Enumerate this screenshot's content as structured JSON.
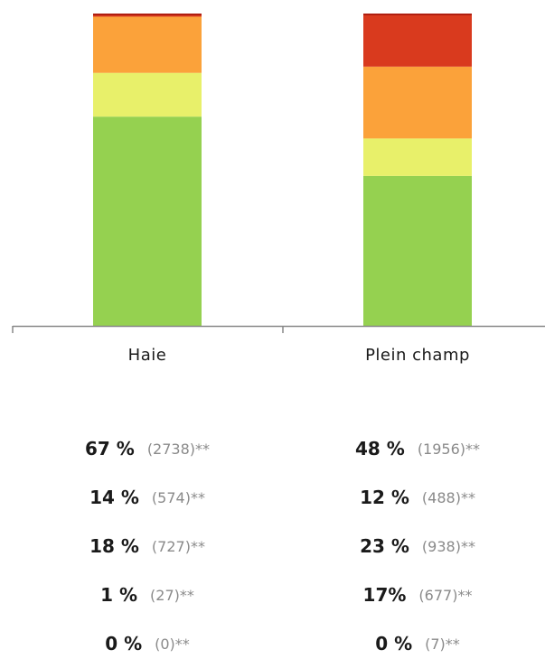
{
  "chart_data": {
    "type": "bar",
    "stacked": true,
    "categories": [
      "Haie",
      "Plein champ"
    ],
    "series": [
      {
        "color": "#95d150",
        "values": [
          67,
          48
        ]
      },
      {
        "color": "#e8f06a",
        "values": [
          14,
          12
        ]
      },
      {
        "color": "#fba23a",
        "values": [
          18,
          23
        ]
      },
      {
        "color": "#d93a1e",
        "values": [
          1,
          17
        ]
      },
      {
        "color": "#8b1a1a",
        "values": [
          0,
          0
        ]
      }
    ],
    "ylim": [
      0,
      100
    ],
    "grid": false,
    "legend": "none"
  },
  "stats": [
    {
      "category": "Haie",
      "rows": [
        {
          "pct": "67 %",
          "count": "(2738)",
          "mark": "**"
        },
        {
          "pct": "14 %",
          "count": "(574)",
          "mark": "**"
        },
        {
          "pct": "18 %",
          "count": "(727)",
          "mark": "**"
        },
        {
          "pct": "1 %",
          "count": "(27)",
          "mark": "**"
        },
        {
          "pct": "0 %",
          "count": "(0)",
          "mark": "**"
        }
      ]
    },
    {
      "category": "Plein champ",
      "rows": [
        {
          "pct": "48 %",
          "count": "(1956)",
          "mark": "**"
        },
        {
          "pct": "12 %",
          "count": "(488)",
          "mark": "**"
        },
        {
          "pct": "23 %",
          "count": "(938)",
          "mark": "**"
        },
        {
          "pct": "17%",
          "count": "(677)",
          "mark": "**"
        },
        {
          "pct": "0 %",
          "count": "(7)",
          "mark": "**"
        }
      ]
    }
  ]
}
